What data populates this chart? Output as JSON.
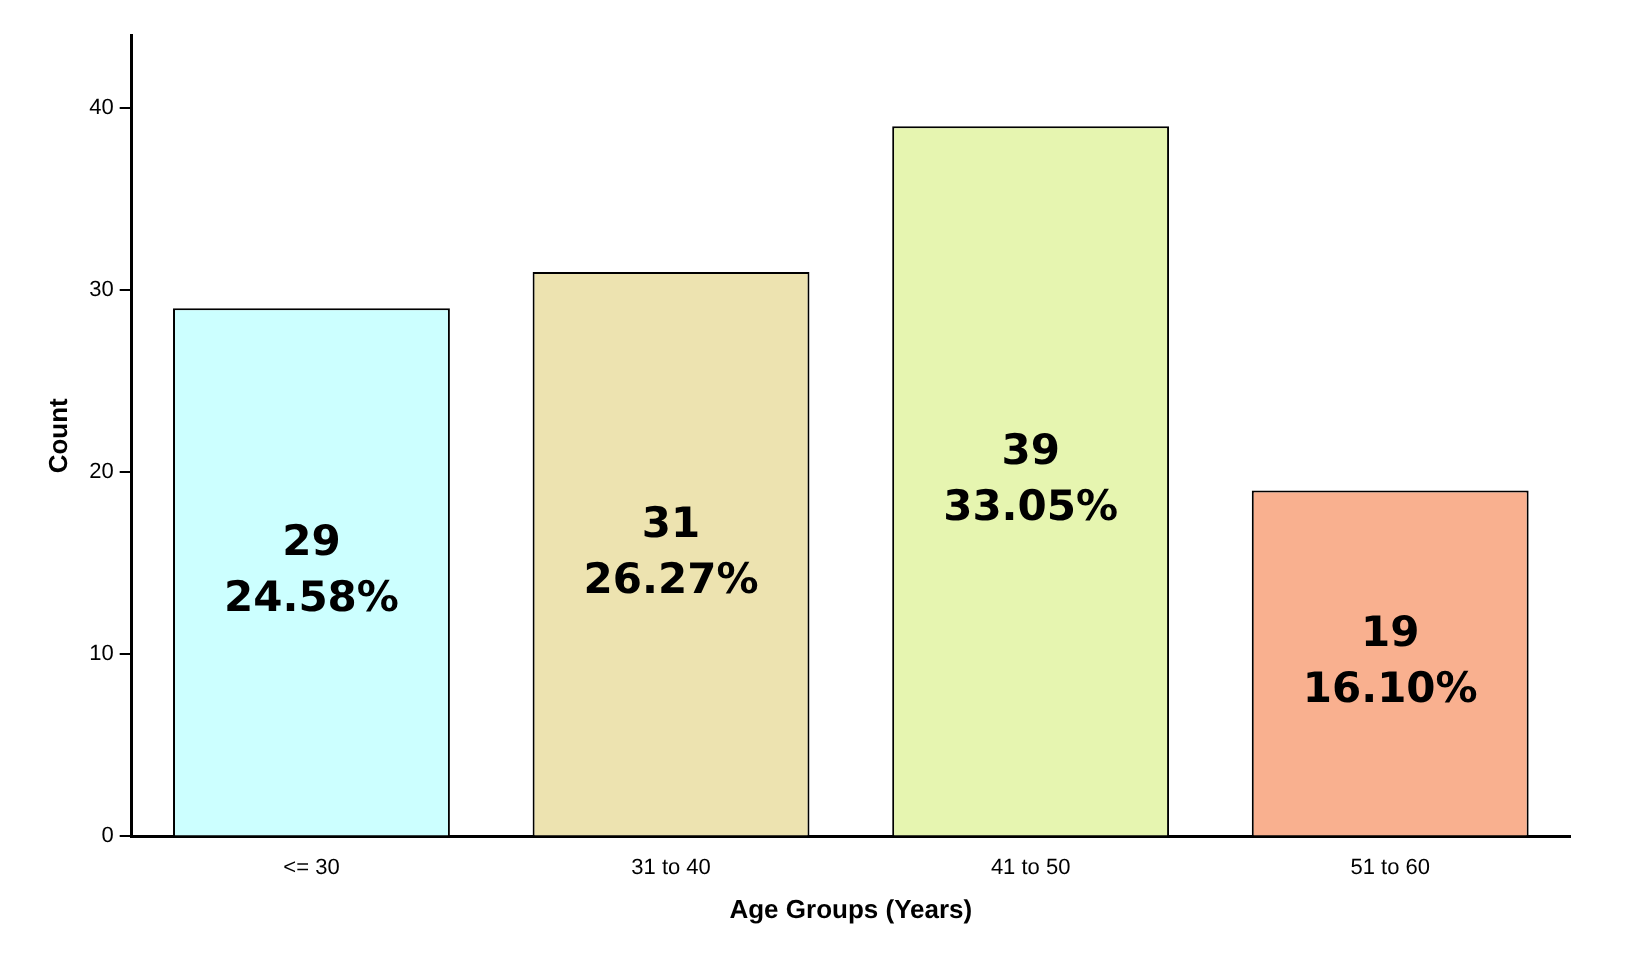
{
  "chart_data": {
    "type": "bar",
    "xlabel": "Age Groups (Years)",
    "ylabel": "Count",
    "categories": [
      "<= 30",
      "31 to 40",
      "41 to 50",
      "51 to 60"
    ],
    "values": [
      29,
      31,
      39,
      19
    ],
    "colors": [
      "#ccffff",
      "#ede3b0",
      "#e6f5b0",
      "#f9b08f"
    ],
    "value_labels": [
      "29\n24.58%",
      "31\n26.27%",
      "39\n33.05%",
      "19\n16.10%"
    ],
    "ylim": [
      0,
      44
    ],
    "yticks": [
      0,
      10,
      20,
      30,
      40
    ],
    "grid": false,
    "legend": false
  }
}
